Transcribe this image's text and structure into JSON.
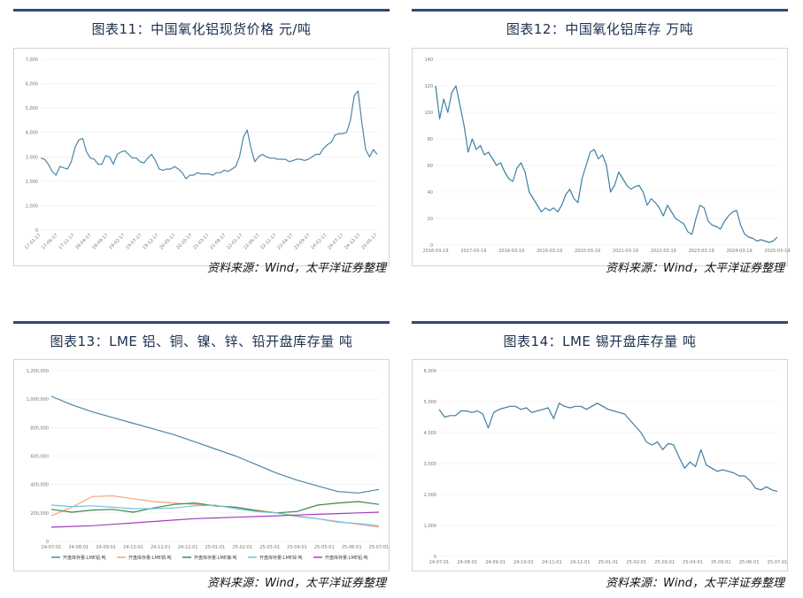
{
  "sources": {
    "c11": "资料来源：Wind，太平洋证券整理",
    "c12": "资料来源：Wind，太平洋证券整理",
    "c13": "资料来源：Wind，太平洋证券整理",
    "c14": "资料来源：Wind，太平洋证券整理"
  },
  "colors": {
    "rule": "#2f4a73",
    "title": "#1b2f4d",
    "line": "#4a86a8"
  },
  "chart_data": [
    {
      "id": "c11",
      "type": "line",
      "title": "图表11：中国氧化铝现货价格 元/吨",
      "ylim": [
        0,
        7000
      ],
      "yticks": [
        "0",
        "1,000",
        "2,000",
        "3,000",
        "4,000",
        "5,000",
        "6,000",
        "7,000"
      ],
      "xticks": [
        "17-01-17",
        "17-06-17",
        "17-11-17",
        "18-04-17",
        "18-09-17",
        "19-02-17",
        "19-07-17",
        "19-12-17",
        "20-05-17",
        "20-10-17",
        "21-03-17",
        "21-08-17",
        "22-01-17",
        "22-06-17",
        "22-11-17",
        "23-04-17",
        "23-09-17",
        "24-02-17",
        "24-07-17",
        "24-12-17",
        "25-05-17"
      ],
      "grid": true,
      "series": [
        {
          "color": "#4a86a8",
          "values": [
            2950,
            2900,
            2700,
            2400,
            2250,
            2600,
            2550,
            2500,
            2800,
            3400,
            3700,
            3750,
            3200,
            2950,
            2900,
            2700,
            2700,
            3050,
            3000,
            2700,
            3100,
            3200,
            3250,
            3100,
            2950,
            2950,
            2800,
            2750,
            2950,
            3100,
            2850,
            2500,
            2450,
            2500,
            2500,
            2600,
            2500,
            2350,
            2100,
            2250,
            2250,
            2350,
            2300,
            2300,
            2300,
            2250,
            2350,
            2350,
            2450,
            2400,
            2500,
            2600,
            3000,
            3800,
            4100,
            3350,
            2800,
            3000,
            3100,
            3000,
            2950,
            2950,
            2900,
            2900,
            2900,
            2800,
            2850,
            2900,
            2900,
            2850,
            2900,
            3000,
            3100,
            3100,
            3350,
            3500,
            3600,
            3900,
            3950,
            3950,
            4000,
            4500,
            5500,
            5700,
            4400,
            3300,
            3000,
            3300,
            3100
          ]
        }
      ]
    },
    {
      "id": "c12",
      "type": "line",
      "title": "图表12：中国氧化铝库存 万吨",
      "ylim": [
        0,
        140
      ],
      "yticks": [
        "0",
        "20",
        "40",
        "60",
        "80",
        "100",
        "120",
        "140"
      ],
      "xticks": [
        "2016-03-19",
        "2017-03-19",
        "2018-03-19",
        "2019-03-19",
        "2020-03-19",
        "2021-03-19",
        "2022-03-19",
        "2023-03-19",
        "2024-03-19",
        "2025-03-19"
      ],
      "grid": true,
      "series": [
        {
          "color": "#3f7fa3",
          "values": [
            120,
            95,
            110,
            100,
            115,
            120,
            105,
            90,
            70,
            80,
            72,
            75,
            68,
            70,
            65,
            60,
            62,
            55,
            50,
            48,
            58,
            62,
            55,
            40,
            35,
            30,
            25,
            28,
            26,
            28,
            25,
            30,
            38,
            42,
            35,
            32,
            50,
            60,
            70,
            72,
            65,
            68,
            60,
            40,
            45,
            55,
            50,
            45,
            42,
            44,
            45,
            40,
            30,
            35,
            32,
            28,
            22,
            30,
            25,
            20,
            18,
            16,
            10,
            8,
            20,
            30,
            28,
            18,
            15,
            14,
            12,
            18,
            22,
            25,
            26,
            15,
            8,
            6,
            5,
            3,
            4,
            3,
            2,
            3,
            6
          ]
        }
      ]
    },
    {
      "id": "c13",
      "type": "line",
      "title": "图表13：LME 铝、铜、镍、锌、铅开盘库存量 吨",
      "ylim": [
        0,
        1200000
      ],
      "yticks": [
        "0",
        "200,000",
        "400,000",
        "600,000",
        "800,000",
        "1,000,000",
        "1,200,000"
      ],
      "xticks": [
        "24-07-01",
        "24-08-01",
        "24-09-01",
        "24-10-01",
        "24-11-01",
        "24-12-01",
        "25-01-01",
        "25-02-01",
        "25-03-01",
        "25-04-01",
        "25-05-01",
        "25-06-01",
        "25-07-01"
      ],
      "grid": true,
      "legend": [
        "开盘库存量:LME铝:吨",
        "开盘库存量:LME铜:吨",
        "开盘库存量:LME镍:吨",
        "开盘库存量:LME锌:吨",
        "开盘库存量:LME铅:吨"
      ],
      "legend_position": "bottom",
      "series": [
        {
          "color": "#4a86a8",
          "values": [
            1020000,
            960000,
            910000,
            870000,
            830000,
            790000,
            750000,
            700000,
            650000,
            600000,
            540000,
            480000,
            430000,
            390000,
            350000,
            340000,
            365000
          ]
        },
        {
          "color": "#f4a582",
          "values": [
            180000,
            240000,
            315000,
            320000,
            300000,
            280000,
            270000,
            260000,
            250000,
            240000,
            220000,
            200000,
            180000,
            160000,
            140000,
            120000,
            100000
          ]
        },
        {
          "color": "#3a8a4a",
          "values": [
            225000,
            205000,
            220000,
            225000,
            205000,
            235000,
            260000,
            270000,
            250000,
            240000,
            215000,
            200000,
            210000,
            255000,
            270000,
            280000,
            260000
          ]
        },
        {
          "color": "#6ec3e0",
          "values": [
            255000,
            245000,
            250000,
            240000,
            230000,
            230000,
            235000,
            250000,
            255000,
            230000,
            210000,
            200000,
            175000,
            160000,
            135000,
            125000,
            110000
          ]
        },
        {
          "color": "#a23fb8",
          "values": [
            100000,
            105000,
            110000,
            120000,
            130000,
            140000,
            150000,
            160000,
            165000,
            170000,
            175000,
            180000,
            185000,
            190000,
            195000,
            200000,
            205000
          ]
        }
      ]
    },
    {
      "id": "c14",
      "type": "line",
      "title": "图表14：LME 锡开盘库存量 吨",
      "ylim": [
        0,
        6000
      ],
      "yticks": [
        "0",
        "1,000",
        "2,000",
        "3,000",
        "4,000",
        "5,000",
        "6,000"
      ],
      "xticks": [
        "24-07-01",
        "24-08-01",
        "24-09-01",
        "24-10-01",
        "24-11-01",
        "24-12-01",
        "25-01-01",
        "25-02-01",
        "25-03-01",
        "25-04-01",
        "25-05-01",
        "25-06-01",
        "25-07-01"
      ],
      "grid": true,
      "series": [
        {
          "color": "#3f7fa3",
          "values": [
            4750,
            4500,
            4550,
            4550,
            4700,
            4700,
            4650,
            4700,
            4600,
            4150,
            4650,
            4750,
            4800,
            4850,
            4850,
            4750,
            4800,
            4650,
            4700,
            4750,
            4800,
            4450,
            4950,
            4850,
            4800,
            4850,
            4850,
            4750,
            4850,
            4950,
            4850,
            4750,
            4700,
            4650,
            4600,
            4400,
            4200,
            4000,
            3700,
            3600,
            3700,
            3450,
            3650,
            3600,
            3200,
            2850,
            3050,
            2900,
            3450,
            2950,
            2850,
            2750,
            2800,
            2750,
            2700,
            2600,
            2600,
            2450,
            2200,
            2150,
            2250,
            2150,
            2100
          ]
        }
      ]
    }
  ]
}
